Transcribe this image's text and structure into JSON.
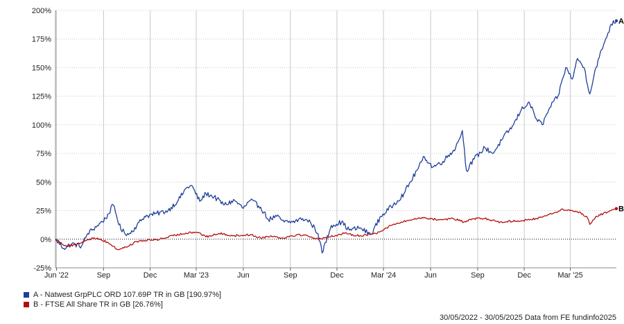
{
  "chart_data": {
    "type": "line",
    "title": "",
    "xlabel": "",
    "ylabel": "",
    "x_range": [
      "2022-05-30",
      "2025-05-30"
    ],
    "ylim": [
      -25,
      200
    ],
    "y_ticks": [
      -25,
      0,
      25,
      50,
      75,
      100,
      125,
      150,
      175,
      200
    ],
    "y_tick_labels": [
      "-25%",
      "0%",
      "25%",
      "50%",
      "75%",
      "100%",
      "125%",
      "150%",
      "175%",
      "200%"
    ],
    "x_ticks": [
      "2022-06-01",
      "2022-09-01",
      "2022-12-01",
      "2023-03-01",
      "2023-06-01",
      "2023-09-01",
      "2023-12-01",
      "2024-03-01",
      "2024-06-01",
      "2024-09-01",
      "2024-12-01",
      "2025-03-01"
    ],
    "x_tick_labels": [
      "Jun '22",
      "Sep",
      "Dec",
      "Mar '23",
      "Jun",
      "Sep",
      "Dec",
      "Mar '24",
      "Jun",
      "Sep",
      "Dec",
      "Mar '25"
    ],
    "grid": true,
    "legend_position": "bottom-left",
    "series": [
      {
        "key": "A",
        "name": "A - Natwest GrpPLC ORD 107.69P TR in GB [190.97%]",
        "color": "#1f3f99",
        "points": [
          [
            "2022-05-30",
            0
          ],
          [
            "2022-06-15",
            -8
          ],
          [
            "2022-07-01",
            -4
          ],
          [
            "2022-07-20",
            -6
          ],
          [
            "2022-08-01",
            5
          ],
          [
            "2022-08-20",
            12
          ],
          [
            "2022-09-05",
            18
          ],
          [
            "2022-09-20",
            30
          ],
          [
            "2022-10-05",
            8
          ],
          [
            "2022-10-20",
            4
          ],
          [
            "2022-11-05",
            12
          ],
          [
            "2022-11-20",
            20
          ],
          [
            "2022-12-10",
            22
          ],
          [
            "2023-01-05",
            25
          ],
          [
            "2023-01-25",
            34
          ],
          [
            "2023-02-10",
            45
          ],
          [
            "2023-02-20",
            47
          ],
          [
            "2023-03-08",
            33
          ],
          [
            "2023-03-20",
            40
          ],
          [
            "2023-04-05",
            37
          ],
          [
            "2023-04-25",
            30
          ],
          [
            "2023-05-15",
            34
          ],
          [
            "2023-06-01",
            27
          ],
          [
            "2023-06-15",
            34
          ],
          [
            "2023-07-05",
            28
          ],
          [
            "2023-07-20",
            17
          ],
          [
            "2023-08-05",
            20
          ],
          [
            "2023-08-20",
            15
          ],
          [
            "2023-09-05",
            15
          ],
          [
            "2023-09-25",
            18
          ],
          [
            "2023-10-10",
            15
          ],
          [
            "2023-10-25",
            5
          ],
          [
            "2023-11-02",
            -12
          ],
          [
            "2023-11-20",
            12
          ],
          [
            "2023-12-10",
            15
          ],
          [
            "2023-12-25",
            8
          ],
          [
            "2024-01-15",
            10
          ],
          [
            "2024-02-05",
            4
          ],
          [
            "2024-02-25",
            20
          ],
          [
            "2024-03-20",
            30
          ],
          [
            "2024-04-10",
            40
          ],
          [
            "2024-05-05",
            60
          ],
          [
            "2024-05-20",
            72
          ],
          [
            "2024-06-05",
            63
          ],
          [
            "2024-06-25",
            68
          ],
          [
            "2024-07-20",
            80
          ],
          [
            "2024-08-02",
            95
          ],
          [
            "2024-08-10",
            60
          ],
          [
            "2024-08-25",
            70
          ],
          [
            "2024-09-15",
            80
          ],
          [
            "2024-10-01",
            75
          ],
          [
            "2024-10-20",
            88
          ],
          [
            "2024-11-10",
            100
          ],
          [
            "2024-11-25",
            113
          ],
          [
            "2024-12-10",
            120
          ],
          [
            "2024-12-25",
            105
          ],
          [
            "2025-01-05",
            100
          ],
          [
            "2025-01-20",
            115
          ],
          [
            "2025-02-05",
            125
          ],
          [
            "2025-02-20",
            150
          ],
          [
            "2025-03-05",
            140
          ],
          [
            "2025-03-15",
            158
          ],
          [
            "2025-03-28",
            150
          ],
          [
            "2025-04-08",
            127
          ],
          [
            "2025-04-20",
            150
          ],
          [
            "2025-05-05",
            170
          ],
          [
            "2025-05-20",
            188
          ],
          [
            "2025-05-30",
            190.97
          ]
        ]
      },
      {
        "key": "B",
        "name": "B - FTSE All Share TR in GB [26.76%]",
        "color": "#b30e0e",
        "points": [
          [
            "2022-05-30",
            0
          ],
          [
            "2022-06-20",
            -6
          ],
          [
            "2022-07-10",
            -5
          ],
          [
            "2022-08-01",
            0
          ],
          [
            "2022-08-20",
            1
          ],
          [
            "2022-09-10",
            -3
          ],
          [
            "2022-09-28",
            -9
          ],
          [
            "2022-10-15",
            -7
          ],
          [
            "2022-11-05",
            -2
          ],
          [
            "2022-11-25",
            -1
          ],
          [
            "2022-12-20",
            0
          ],
          [
            "2023-01-15",
            3
          ],
          [
            "2023-02-15",
            6
          ],
          [
            "2023-03-05",
            6
          ],
          [
            "2023-03-20",
            2
          ],
          [
            "2023-04-15",
            5
          ],
          [
            "2023-05-15",
            3
          ],
          [
            "2023-06-15",
            4
          ],
          [
            "2023-07-05",
            1
          ],
          [
            "2023-07-25",
            3
          ],
          [
            "2023-08-15",
            1
          ],
          [
            "2023-09-15",
            4
          ],
          [
            "2023-10-05",
            3
          ],
          [
            "2023-10-25",
            0
          ],
          [
            "2023-11-15",
            2
          ],
          [
            "2023-12-15",
            5
          ],
          [
            "2024-01-15",
            3
          ],
          [
            "2024-02-15",
            5
          ],
          [
            "2024-03-15",
            12
          ],
          [
            "2024-04-15",
            16
          ],
          [
            "2024-05-15",
            19
          ],
          [
            "2024-06-15",
            17
          ],
          [
            "2024-07-15",
            18
          ],
          [
            "2024-08-05",
            15
          ],
          [
            "2024-08-25",
            18
          ],
          [
            "2024-09-15",
            18
          ],
          [
            "2024-10-15",
            15
          ],
          [
            "2024-11-15",
            16
          ],
          [
            "2024-12-15",
            17
          ],
          [
            "2025-01-15",
            21
          ],
          [
            "2025-02-15",
            26
          ],
          [
            "2025-03-15",
            24
          ],
          [
            "2025-04-02",
            20
          ],
          [
            "2025-04-08",
            13
          ],
          [
            "2025-04-20",
            20
          ],
          [
            "2025-05-15",
            24
          ],
          [
            "2025-05-30",
            26.76
          ]
        ]
      }
    ]
  },
  "footer": {
    "text": "30/05/2022 - 30/05/2025 Data from FE fundinfo2025"
  }
}
